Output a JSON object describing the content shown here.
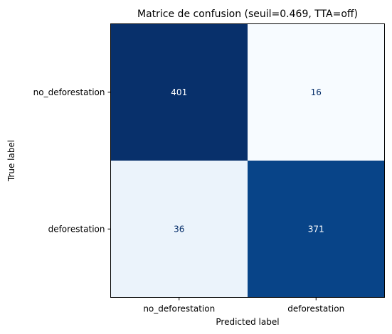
{
  "chart_data": {
    "type": "heatmap",
    "title": "Matrice de confusion (seuil=0.469, TTA=off)",
    "xlabel": "Predicted label",
    "ylabel": "True label",
    "x_categories": [
      "no_deforestation",
      "deforestation"
    ],
    "y_categories": [
      "no_deforestation",
      "deforestation"
    ],
    "values": [
      [
        401,
        16
      ],
      [
        36,
        371
      ]
    ],
    "colormap": "Blues",
    "colorbar": false,
    "grid": false,
    "cell_colors": [
      [
        "#08306b",
        "#f7fbff"
      ],
      [
        "#ebf3fb",
        "#084488"
      ]
    ],
    "text_colors": [
      [
        "#ffffff",
        "#08306b"
      ],
      [
        "#08306b",
        "#ffffff"
      ]
    ]
  }
}
